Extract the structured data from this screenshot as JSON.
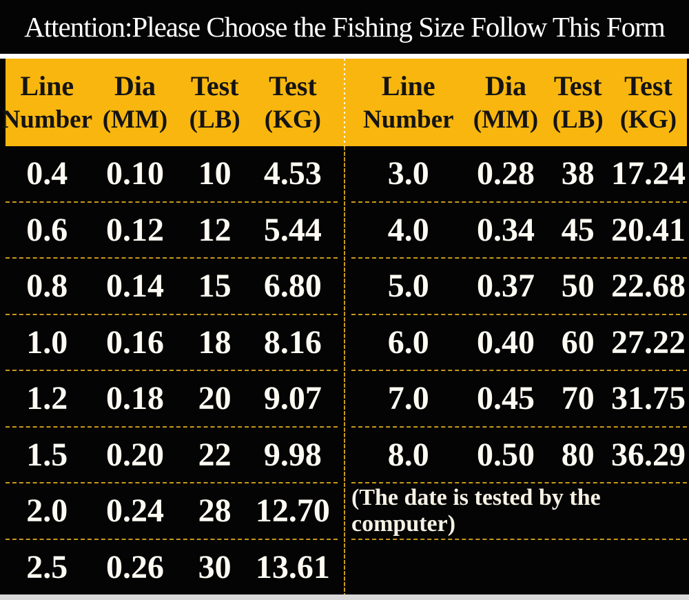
{
  "title": "Attention:Please Choose the Fishing Size Follow This Form",
  "columns": [
    {
      "line1": "Line",
      "line2": "Number"
    },
    {
      "line1": "Dia",
      "line2": "(MM)"
    },
    {
      "line1": "Test",
      "line2": "(LB)"
    },
    {
      "line1": "Test",
      "line2": "(KG)"
    }
  ],
  "left_table": {
    "rows": [
      [
        "0.4",
        "0.10",
        "10",
        "4.53"
      ],
      [
        "0.6",
        "0.12",
        "12",
        "5.44"
      ],
      [
        "0.8",
        "0.14",
        "15",
        "6.80"
      ],
      [
        "1.0",
        "0.16",
        "18",
        "8.16"
      ],
      [
        "1.2",
        "0.18",
        "20",
        "9.07"
      ],
      [
        "1.5",
        "0.20",
        "22",
        "9.98"
      ],
      [
        "2.0",
        "0.24",
        "28",
        "12.70"
      ],
      [
        "2.5",
        "0.26",
        "30",
        "13.61"
      ]
    ]
  },
  "right_table": {
    "rows": [
      [
        "3.0",
        "0.28",
        "38",
        "17.24"
      ],
      [
        "4.0",
        "0.34",
        "45",
        "20.41"
      ],
      [
        "5.0",
        "0.37",
        "50",
        "22.68"
      ],
      [
        "6.0",
        "0.40",
        "60",
        "27.22"
      ],
      [
        "7.0",
        "0.45",
        "70",
        "31.75"
      ],
      [
        "8.0",
        "0.50",
        "80",
        "36.29"
      ]
    ],
    "note": "(The date is tested by the computer)"
  },
  "colors": {
    "background": "#040404",
    "header_yellow": "#F8B60E",
    "header_text": "#141414",
    "row_text": "#FCFAF2",
    "separator_gold": "#C9991C",
    "top_strip": "#FFFFFF",
    "bottom_strip": "#D9D9D9",
    "title_text": "#FFFFFF"
  },
  "chart_data": {
    "type": "table",
    "title": "Attention:Please Choose the Fishing Size Follow This Form",
    "columns": [
      "Line Number",
      "Dia (MM)",
      "Test (LB)",
      "Test (KG)"
    ],
    "tables": [
      {
        "name": "left",
        "rows": [
          [
            0.4,
            0.1,
            10,
            4.53
          ],
          [
            0.6,
            0.12,
            12,
            5.44
          ],
          [
            0.8,
            0.14,
            15,
            6.8
          ],
          [
            1.0,
            0.16,
            18,
            8.16
          ],
          [
            1.2,
            0.18,
            20,
            9.07
          ],
          [
            1.5,
            0.2,
            22,
            9.98
          ],
          [
            2.0,
            0.24,
            28,
            12.7
          ],
          [
            2.5,
            0.26,
            30,
            13.61
          ]
        ]
      },
      {
        "name": "right",
        "rows": [
          [
            3.0,
            0.28,
            38,
            17.24
          ],
          [
            4.0,
            0.34,
            45,
            20.41
          ],
          [
            5.0,
            0.37,
            50,
            22.68
          ],
          [
            6.0,
            0.4,
            60,
            27.22
          ],
          [
            7.0,
            0.45,
            70,
            31.75
          ],
          [
            8.0,
            0.5,
            80,
            36.29
          ]
        ],
        "note": "(The date is tested by the computer)"
      }
    ],
    "layout": {
      "grid": "two side-by-side tables on black, gold dashed row separators, yellow header band"
    }
  }
}
